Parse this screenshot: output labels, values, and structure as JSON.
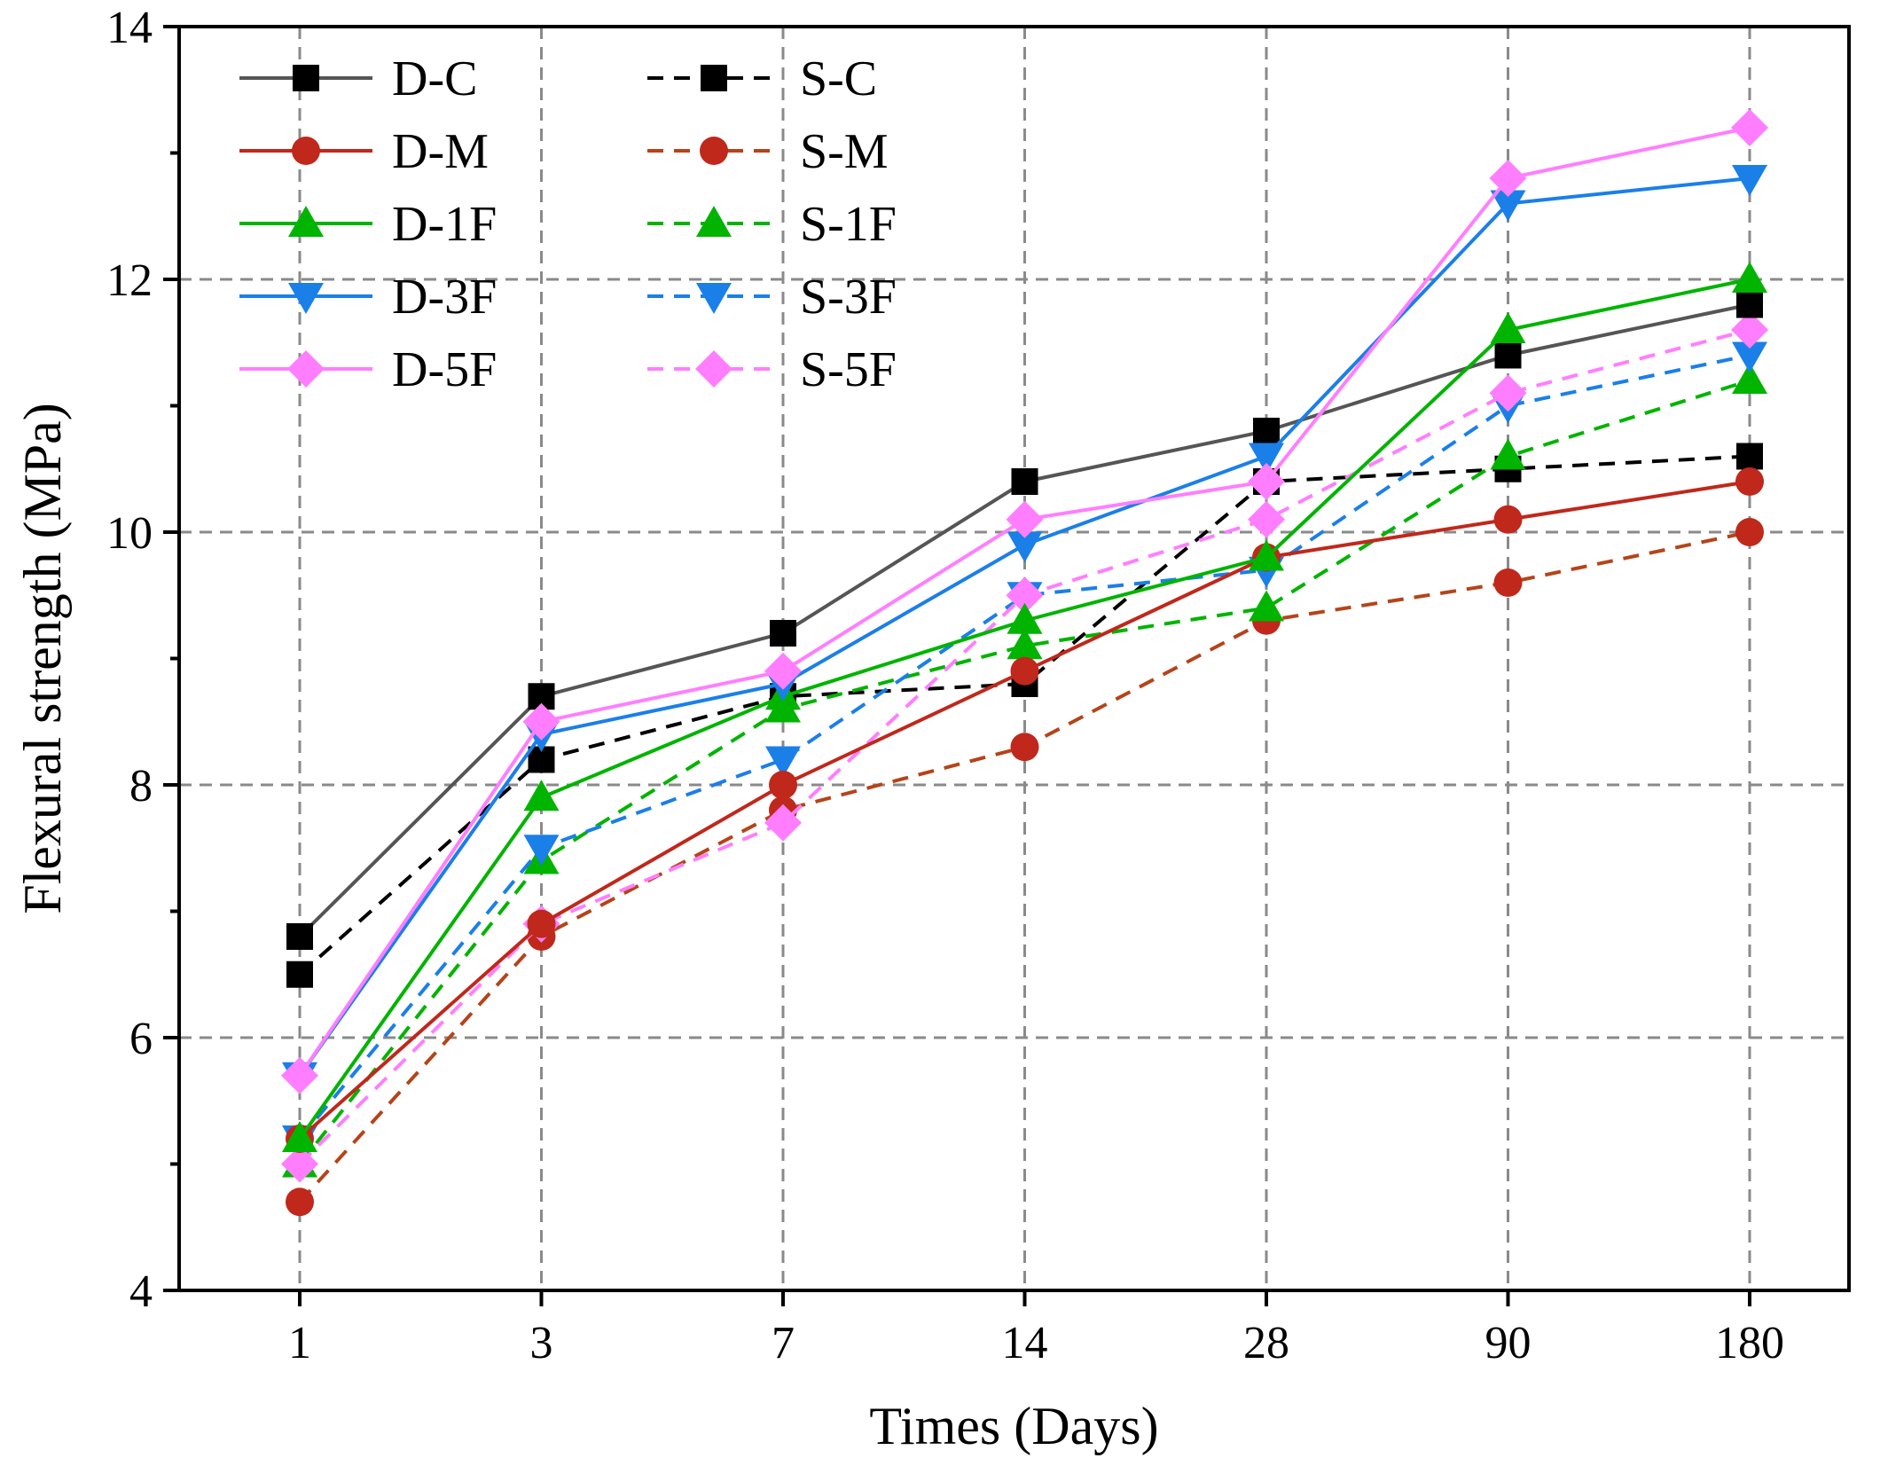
{
  "chart_data": {
    "type": "line",
    "title": "",
    "xlabel": "Times (Days)",
    "ylabel": "Flexural strength (MPa)",
    "categories": [
      "1",
      "3",
      "7",
      "14",
      "28",
      "90",
      "180"
    ],
    "ylim": [
      4,
      14
    ],
    "yticks": [
      "4",
      "6",
      "8",
      "10",
      "12",
      "14"
    ],
    "grid": true,
    "legend_position": "top-left",
    "series": [
      {
        "name": "D-C",
        "color": "#555555",
        "marker_color": "#000000",
        "marker": "square",
        "dash": "solid",
        "values": [
          6.8,
          8.7,
          9.2,
          10.4,
          10.8,
          11.4,
          11.8
        ]
      },
      {
        "name": "D-M",
        "color": "#c0281b",
        "marker_color": "#c0281b",
        "marker": "circle",
        "dash": "solid",
        "values": [
          5.2,
          6.9,
          8.0,
          8.9,
          9.8,
          10.1,
          10.4
        ]
      },
      {
        "name": "D-1F",
        "color": "#00b400",
        "marker_color": "#00b400",
        "marker": "triangle-up",
        "dash": "solid",
        "values": [
          5.2,
          7.9,
          8.7,
          9.3,
          9.8,
          11.6,
          12.0
        ]
      },
      {
        "name": "D-3F",
        "color": "#1b7fe8",
        "marker_color": "#1b7fe8",
        "marker": "triangle-down",
        "dash": "solid",
        "values": [
          5.7,
          8.4,
          8.8,
          9.9,
          10.6,
          12.6,
          12.8
        ]
      },
      {
        "name": "D-5F",
        "color": "#ff7eff",
        "marker_color": "#ff7eff",
        "marker": "diamond",
        "dash": "solid",
        "values": [
          5.7,
          8.5,
          8.9,
          10.1,
          10.4,
          12.8,
          13.2
        ]
      },
      {
        "name": "S-C",
        "color": "#000000",
        "marker_color": "#000000",
        "marker": "square",
        "dash": "dashed",
        "values": [
          6.5,
          8.2,
          8.7,
          8.8,
          10.4,
          10.5,
          10.6
        ]
      },
      {
        "name": "S-M",
        "color": "#b5441a",
        "marker_color": "#c0281b",
        "marker": "circle",
        "dash": "dashed",
        "values": [
          4.7,
          6.8,
          7.8,
          8.3,
          9.3,
          9.6,
          10.0
        ]
      },
      {
        "name": "S-1F",
        "color": "#00b400",
        "marker_color": "#00b400",
        "marker": "triangle-up",
        "dash": "dashed",
        "values": [
          5.0,
          7.4,
          8.6,
          9.1,
          9.4,
          10.6,
          11.2
        ]
      },
      {
        "name": "S-3F",
        "color": "#1b7fe8",
        "marker_color": "#1b7fe8",
        "marker": "triangle-down",
        "dash": "dashed",
        "values": [
          5.2,
          7.5,
          8.2,
          9.5,
          9.7,
          11.0,
          11.4
        ]
      },
      {
        "name": "S-5F",
        "color": "#ff7eff",
        "marker_color": "#ff7eff",
        "marker": "diamond",
        "dash": "dashed",
        "values": [
          5.0,
          6.9,
          7.7,
          9.5,
          10.1,
          11.1,
          11.6
        ]
      }
    ]
  }
}
